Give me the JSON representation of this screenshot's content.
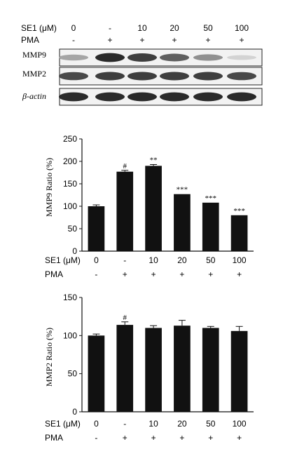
{
  "blot": {
    "treatment_label": "SE1 (μM)",
    "pma_label": "PMA",
    "doses": [
      "0",
      "-",
      "10",
      "20",
      "50",
      "100"
    ],
    "pma": [
      "-",
      "+",
      "+",
      "+",
      "+",
      "+"
    ],
    "bands": [
      "MMP9",
      "MMP2",
      "β-actin"
    ],
    "band_intensity": [
      [
        0.35,
        0.95,
        0.85,
        0.7,
        0.45,
        0.12
      ],
      [
        0.8,
        0.85,
        0.85,
        0.85,
        0.85,
        0.8
      ],
      [
        0.95,
        0.95,
        0.95,
        0.95,
        0.95,
        0.95
      ]
    ]
  },
  "chart_data": [
    {
      "type": "bar",
      "categories": [
        "0",
        "-",
        "10",
        "20",
        "50",
        "100"
      ],
      "values": [
        100,
        177,
        190,
        127,
        108,
        80
      ],
      "errors": [
        3,
        3,
        3,
        0,
        0,
        0
      ],
      "annotations": [
        "",
        "#",
        "**",
        "***",
        "***",
        "***"
      ],
      "ylabel": "MMP9 Ratio (%)",
      "ylim": [
        0,
        250
      ],
      "yticks": [
        0,
        50,
        100,
        150,
        200,
        250
      ],
      "row_labels": [
        "SE1 (μM)",
        "PMA"
      ],
      "pma": [
        "-",
        "+",
        "+",
        "+",
        "+",
        "+"
      ],
      "bar_color": "#111111"
    },
    {
      "type": "bar",
      "categories": [
        "0",
        "-",
        "10",
        "20",
        "50",
        "100"
      ],
      "values": [
        100,
        114,
        110,
        113,
        110,
        106
      ],
      "errors": [
        2,
        4,
        3,
        7,
        2,
        6
      ],
      "annotations": [
        "",
        "#",
        "",
        "",
        "",
        ""
      ],
      "ylabel": "MMP2 Ratio (%)",
      "ylim": [
        0,
        150
      ],
      "yticks": [
        0,
        50,
        100,
        150
      ],
      "row_labels": [
        "SE1 (μM)",
        "PMA"
      ],
      "pma": [
        "-",
        "+",
        "+",
        "+",
        "+",
        "+"
      ],
      "bar_color": "#111111"
    }
  ]
}
